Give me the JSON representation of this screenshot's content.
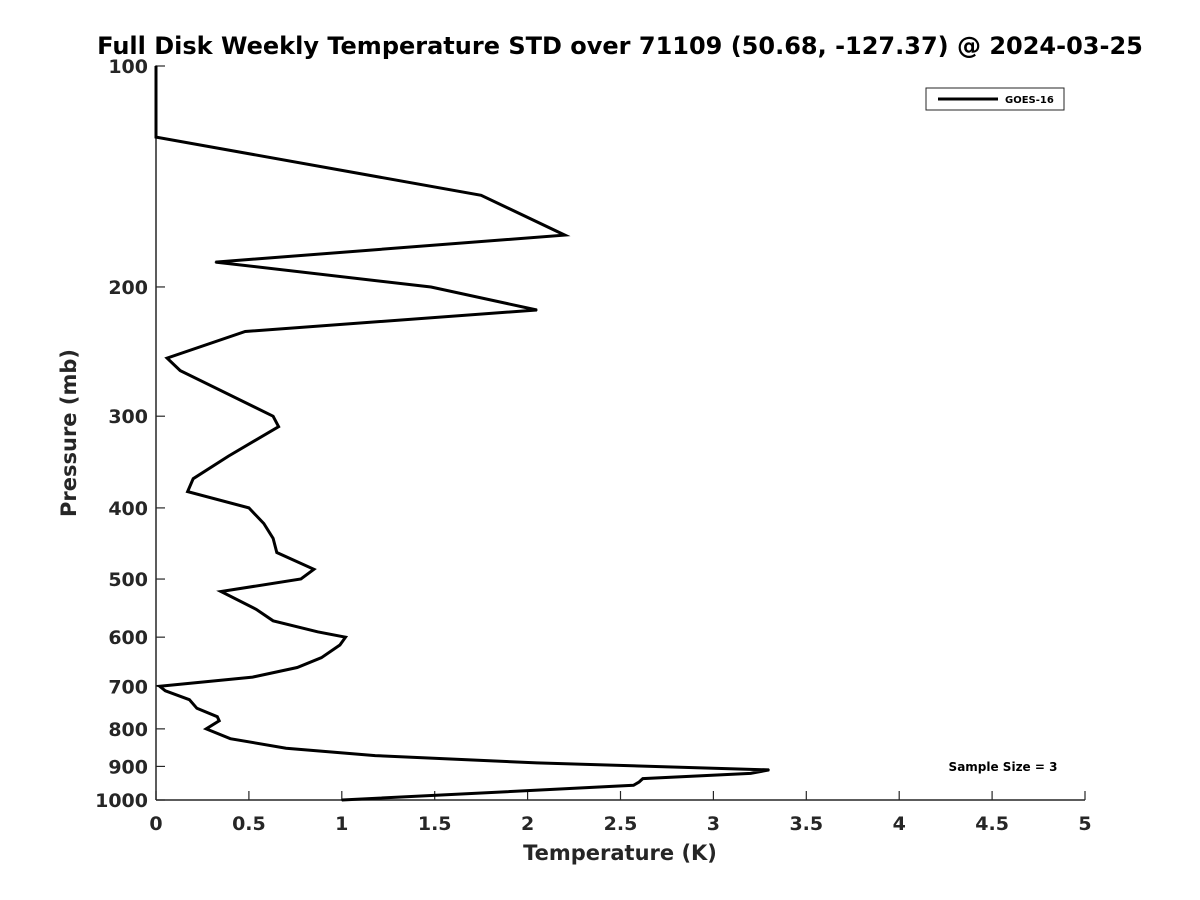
{
  "chart_data": {
    "type": "line",
    "title": "Full Disk Weekly Temperature STD over 71109 (50.68, -127.37) @ 2024-03-25",
    "xlabel": "Temperature (K)",
    "ylabel": "Pressure (mb)",
    "xlim": [
      0,
      5
    ],
    "ylim": [
      1000,
      100
    ],
    "yscale": "log",
    "y_reversed": true,
    "grid": false,
    "legend_position": "top-right",
    "xticks": [
      0,
      0.5,
      1,
      1.5,
      2,
      2.5,
      3,
      3.5,
      4,
      4.5,
      5
    ],
    "xtick_labels": [
      "0",
      "0.5",
      "1",
      "1.5",
      "2",
      "2.5",
      "3",
      "3.5",
      "4",
      "4.5",
      "5"
    ],
    "yticks": [
      100,
      200,
      300,
      400,
      500,
      600,
      700,
      800,
      900,
      1000
    ],
    "ytick_labels": [
      "100",
      "200",
      "300",
      "400",
      "500",
      "600",
      "700",
      "800",
      "900",
      "1000"
    ],
    "series": [
      {
        "name": "GOES-16",
        "color": "#000000",
        "points": [
          [
            0.0,
            100
          ],
          [
            0.0,
            125
          ],
          [
            1.75,
            150
          ],
          [
            2.2,
            170
          ],
          [
            0.32,
            185
          ],
          [
            1.48,
            200
          ],
          [
            2.05,
            215
          ],
          [
            0.48,
            230
          ],
          [
            0.06,
            250
          ],
          [
            0.13,
            260
          ],
          [
            0.63,
            300
          ],
          [
            0.66,
            310
          ],
          [
            0.39,
            340
          ],
          [
            0.2,
            365
          ],
          [
            0.17,
            380
          ],
          [
            0.5,
            400
          ],
          [
            0.58,
            420
          ],
          [
            0.63,
            440
          ],
          [
            0.65,
            460
          ],
          [
            0.85,
            485
          ],
          [
            0.78,
            500
          ],
          [
            0.35,
            520
          ],
          [
            0.54,
            550
          ],
          [
            0.63,
            570
          ],
          [
            0.87,
            590
          ],
          [
            1.02,
            600
          ],
          [
            0.99,
            615
          ],
          [
            0.89,
            640
          ],
          [
            0.76,
            660
          ],
          [
            0.52,
            680
          ],
          [
            0.02,
            700
          ],
          [
            0.05,
            710
          ],
          [
            0.18,
            730
          ],
          [
            0.22,
            750
          ],
          [
            0.33,
            770
          ],
          [
            0.34,
            780
          ],
          [
            0.27,
            800
          ],
          [
            0.4,
            825
          ],
          [
            0.7,
            850
          ],
          [
            1.18,
            870
          ],
          [
            2.05,
            890
          ],
          [
            3.3,
            910
          ],
          [
            3.2,
            920
          ],
          [
            2.62,
            935
          ],
          [
            2.6,
            945
          ],
          [
            2.57,
            955
          ],
          [
            1.0,
            1000
          ]
        ]
      }
    ],
    "annotations": [
      "Sample Size = 3"
    ]
  }
}
